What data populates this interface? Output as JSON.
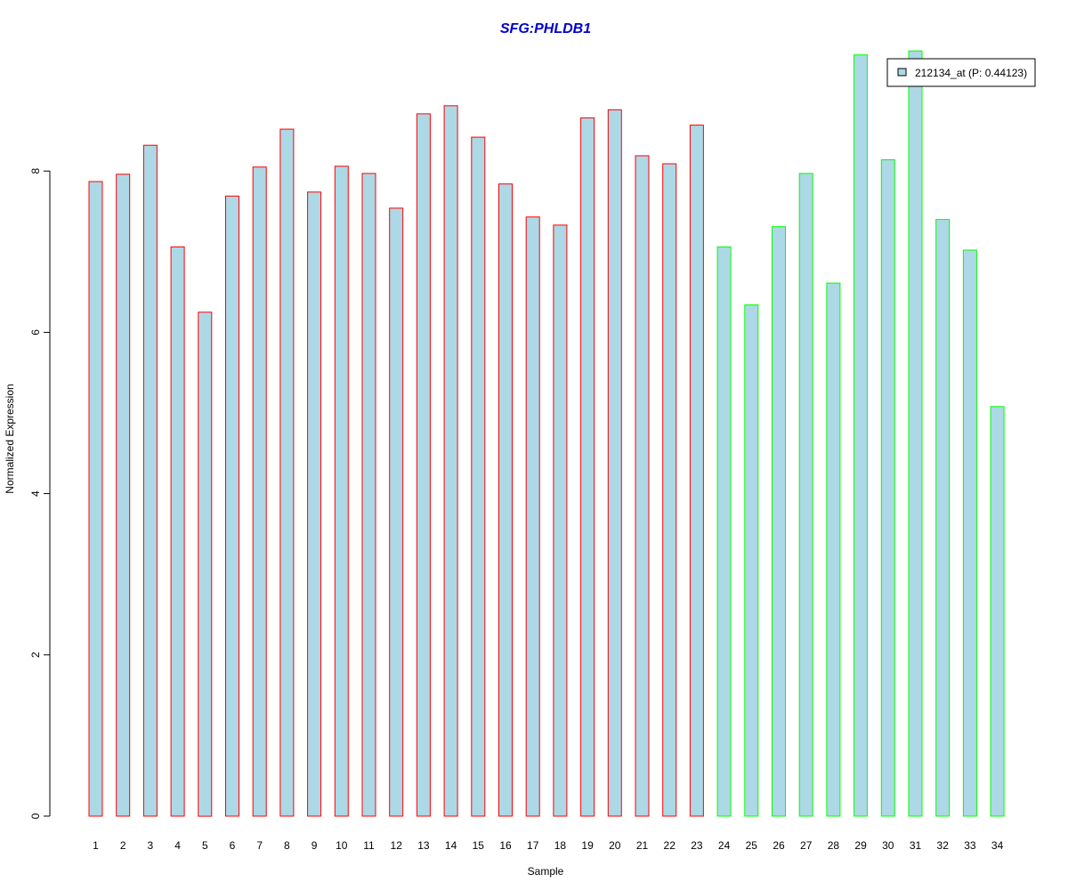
{
  "chart_data": {
    "type": "bar",
    "title": "SFG:PHLDB1",
    "xlabel": "Sample",
    "ylabel": "Normalized Expression",
    "ylim": [
      0,
      9.5
    ],
    "yticks": [
      0,
      2,
      4,
      6,
      8
    ],
    "categories": [
      "1",
      "2",
      "3",
      "4",
      "5",
      "6",
      "7",
      "8",
      "9",
      "10",
      "11",
      "12",
      "13",
      "14",
      "15",
      "16",
      "17",
      "18",
      "19",
      "20",
      "21",
      "22",
      "23",
      "24",
      "25",
      "26",
      "27",
      "28",
      "29",
      "30",
      "31",
      "32",
      "33",
      "34"
    ],
    "series": [
      {
        "name": "212134_at (P: 0.44123)",
        "fill": "#add8e6",
        "values": [
          7.87,
          7.96,
          8.32,
          7.06,
          6.25,
          7.69,
          8.05,
          8.52,
          7.74,
          8.06,
          7.97,
          7.54,
          8.71,
          8.81,
          8.42,
          7.84,
          7.43,
          7.33,
          8.66,
          8.76,
          8.19,
          8.09,
          8.57,
          7.06,
          6.34,
          7.31,
          7.97,
          6.61,
          9.44,
          8.14,
          9.49,
          7.4,
          7.02,
          5.08
        ]
      }
    ],
    "group_outline_colors": [
      "#ff0000",
      "#ff0000",
      "#ff0000",
      "#ff0000",
      "#ff0000",
      "#ff0000",
      "#ff0000",
      "#ff0000",
      "#ff0000",
      "#ff0000",
      "#ff0000",
      "#ff0000",
      "#ff0000",
      "#ff0000",
      "#ff0000",
      "#ff0000",
      "#ff0000",
      "#ff0000",
      "#ff0000",
      "#ff0000",
      "#ff0000",
      "#ff0000",
      "#ff0000",
      "#00ff00",
      "#00ff00",
      "#00ff00",
      "#00ff00",
      "#00ff00",
      "#00ff00",
      "#00ff00",
      "#00ff00",
      "#00ff00",
      "#00ff00",
      "#00ff00"
    ],
    "legend": {
      "label": "212134_at (P: 0.44123)",
      "placement": "top-right"
    },
    "title_color": "#0000cc",
    "grid": false
  }
}
